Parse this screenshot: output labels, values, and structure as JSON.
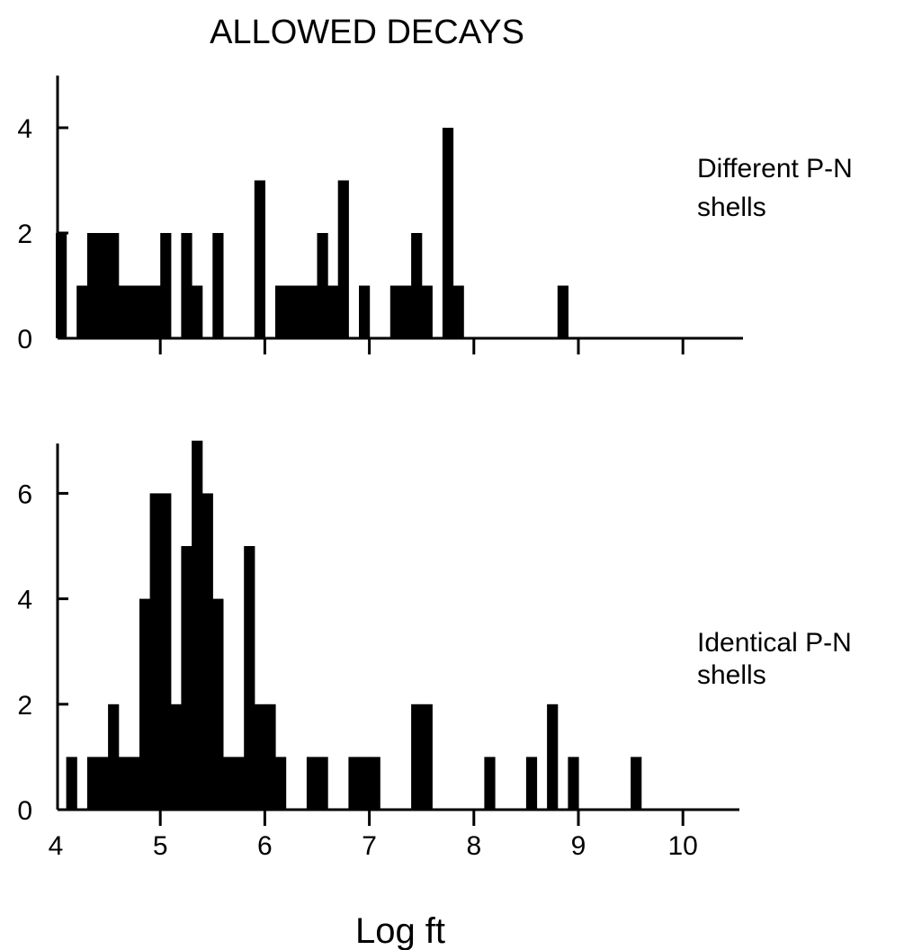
{
  "chart_data": {
    "title": "ALLOWED DECAYS",
    "xlabel": "Log ft",
    "x_ticks": [
      "4",
      "5",
      "6",
      "7",
      "8",
      "9",
      "10"
    ],
    "charts": [
      {
        "type": "bar",
        "label": [
          "Different  P-N",
          "shells"
        ],
        "ylabel": "",
        "y_ticks": [
          "0",
          "2",
          "4"
        ],
        "xlim": [
          4,
          10.6
        ],
        "ylim": [
          0,
          5
        ],
        "bin_width": 0.1,
        "x": [
          4.0,
          4.1,
          4.2,
          4.3,
          4.4,
          4.5,
          4.6,
          4.7,
          4.8,
          4.9,
          5.0,
          5.1,
          5.2,
          5.3,
          5.4,
          5.5,
          5.6,
          5.7,
          5.8,
          5.9,
          6.0,
          6.1,
          6.2,
          6.3,
          6.4,
          6.5,
          6.6,
          6.7,
          6.8,
          6.9,
          7.0,
          7.1,
          7.2,
          7.3,
          7.4,
          7.5,
          7.6,
          7.7,
          7.8,
          7.9,
          8.0,
          8.1,
          8.2,
          8.3,
          8.4,
          8.5,
          8.6,
          8.7,
          8.8
        ],
        "values": [
          2,
          0,
          1,
          2,
          2,
          2,
          1,
          1,
          1,
          1,
          2,
          0,
          2,
          1,
          0,
          2,
          0,
          0,
          0,
          3,
          0,
          1,
          1,
          1,
          1,
          2,
          1,
          3,
          0,
          1,
          0,
          0,
          1,
          1,
          2,
          1,
          0,
          4,
          1,
          0,
          0,
          0,
          0,
          0,
          0,
          0,
          0,
          0,
          1
        ]
      },
      {
        "type": "bar",
        "label": [
          "Identical P-N",
          "shells"
        ],
        "ylabel": "",
        "y_ticks": [
          "0",
          "2",
          "4",
          "6"
        ],
        "xlim": [
          4,
          10.6
        ],
        "ylim": [
          0,
          7
        ],
        "bin_width": 0.1,
        "x": [
          4.1,
          4.2,
          4.3,
          4.4,
          4.5,
          4.6,
          4.7,
          4.8,
          4.9,
          5.0,
          5.1,
          5.2,
          5.3,
          5.4,
          5.5,
          5.6,
          5.7,
          5.8,
          5.9,
          6.0,
          6.1,
          6.2,
          6.3,
          6.4,
          6.5,
          6.6,
          6.7,
          6.8,
          6.9,
          7.0,
          7.1,
          7.2,
          7.3,
          7.4,
          7.5,
          7.6,
          7.7,
          7.8,
          7.9,
          8.0,
          8.1,
          8.2,
          8.3,
          8.4,
          8.5,
          8.6,
          8.7,
          8.8,
          8.9,
          9.0,
          9.1,
          9.2,
          9.3,
          9.4,
          9.5
        ],
        "values": [
          1,
          0,
          1,
          1,
          2,
          1,
          1,
          4,
          6,
          6,
          2,
          5,
          7,
          6,
          4,
          1,
          1,
          5,
          2,
          2,
          1,
          0,
          0,
          1,
          1,
          0,
          0,
          1,
          1,
          1,
          0,
          0,
          0,
          2,
          2,
          0,
          0,
          0,
          0,
          0,
          1,
          0,
          0,
          0,
          1,
          0,
          2,
          0,
          1,
          0,
          0,
          0,
          0,
          0,
          1
        ]
      }
    ]
  }
}
